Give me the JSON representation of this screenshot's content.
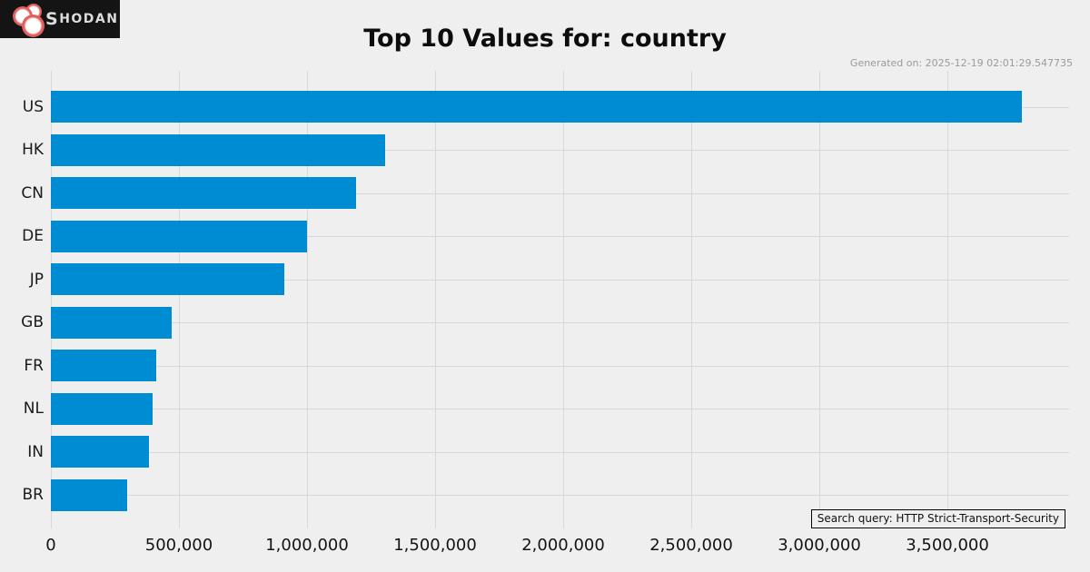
{
  "brand": {
    "logo_text": "SHODAN"
  },
  "header": {
    "title": "Top 10 Values for: country",
    "generated_on": "Generated on: 2025-12-19 02:01:29.547735"
  },
  "footer": {
    "search_query": "Search query: HTTP Strict-Transport-Security"
  },
  "colors": {
    "background": "#efefef",
    "bar": "#008cd3",
    "grid": "#d8d8d8",
    "logo_background": "#141414",
    "logo_dots_red": "#e35f5f"
  },
  "chart_data": {
    "type": "bar",
    "orientation": "horizontal",
    "title": "Top 10 Values for: country",
    "categories": [
      "US",
      "HK",
      "CN",
      "DE",
      "JP",
      "GB",
      "FR",
      "NL",
      "IN",
      "BR"
    ],
    "values": [
      3790000,
      1305000,
      1190000,
      1000000,
      910000,
      472000,
      412000,
      398000,
      383000,
      298000
    ],
    "xlabel": "",
    "ylabel": "",
    "xlim": [
      0,
      3975000
    ],
    "x_ticks": [
      0,
      500000,
      1000000,
      1500000,
      2000000,
      2500000,
      3000000,
      3500000
    ],
    "x_tick_labels": [
      "0",
      "500,000",
      "1,000,000",
      "1,500,000",
      "2,000,000",
      "2,500,000",
      "3,000,000",
      "3,500,000"
    ],
    "grid": true,
    "bar_color": "#008cd3"
  }
}
